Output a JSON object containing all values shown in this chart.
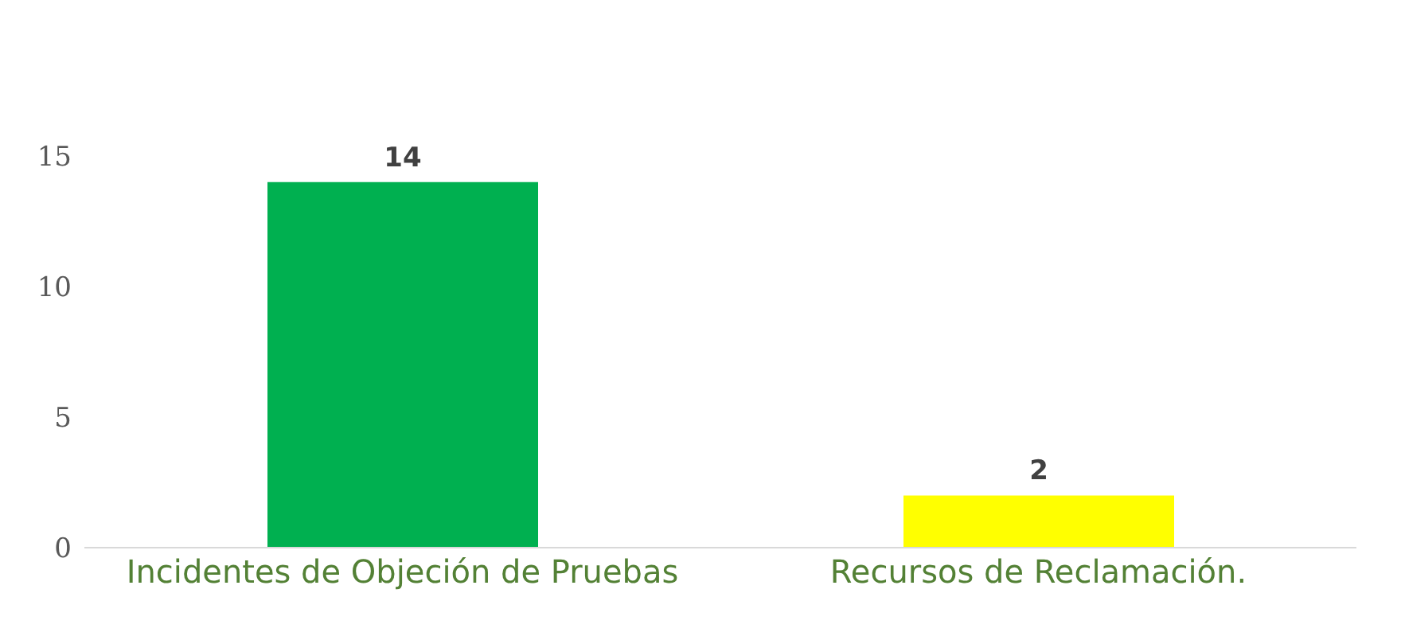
{
  "chart_data": {
    "type": "bar",
    "categories": [
      "Incidentes de Objeción de Pruebas",
      "Recursos de Reclamación."
    ],
    "values": [
      14,
      2
    ],
    "colors": [
      "#00b050",
      "#ffff00"
    ],
    "ylim": [
      0,
      15
    ],
    "yticks": [
      0,
      5,
      10,
      15
    ],
    "data_labels": true
  }
}
